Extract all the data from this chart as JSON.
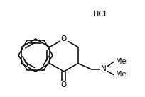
{
  "background_color": "#ffffff",
  "line_color": "#000000",
  "line_width": 1.1,
  "hcl_text": "HCl",
  "hcl_fontsize": 8.0,
  "o_label": "O",
  "carbonyl_o": "O",
  "n_label": "N",
  "label_fontsize": 7.5,
  "me_fontsize": 7.0,
  "figw": 2.04,
  "figh": 1.37,
  "dpi": 100
}
